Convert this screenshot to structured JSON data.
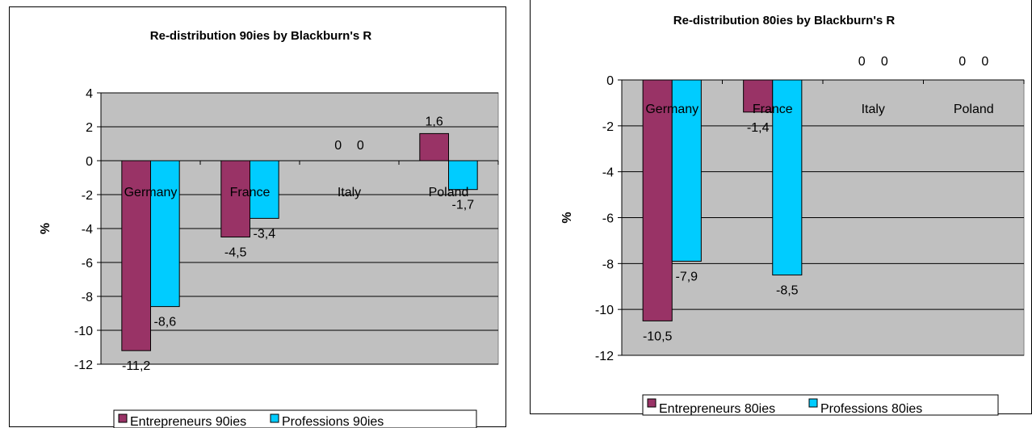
{
  "chart_data": [
    {
      "type": "bar",
      "title": "Re-distribution 90ies by Blackburn's R",
      "xlabel": "",
      "ylabel": "%",
      "categories": [
        "Germany",
        "France",
        "Italy",
        "Poland"
      ],
      "series": [
        {
          "name": "Entrepreneurs 90ies",
          "values": [
            -11.2,
            -4.5,
            0,
            1.6
          ],
          "labels": [
            "-11,2",
            "-4,5",
            "0",
            "1,6"
          ],
          "color": "#993366"
        },
        {
          "name": "Professions 90ies",
          "values": [
            -8.6,
            -3.4,
            0,
            -1.7
          ],
          "labels": [
            "-8,6",
            "-3,4",
            "0",
            "-1,7"
          ],
          "color": "#00ccff"
        }
      ],
      "ylim": [
        -12,
        4
      ],
      "yticks": [
        "-12",
        "-10",
        "-8",
        "-6",
        "-4",
        "-2",
        "0",
        "2",
        "4"
      ],
      "grid": true,
      "plot_background": "#c0c0c0",
      "legend_position": "bottom"
    },
    {
      "type": "bar",
      "title": "Re-distribution 80ies by Blackburn's R",
      "xlabel": "",
      "ylabel": "%",
      "categories": [
        "Germany",
        "France",
        "Italy",
        "Poland"
      ],
      "series": [
        {
          "name": "Entrepreneurs 80ies",
          "values": [
            -10.5,
            -1.4,
            0,
            0
          ],
          "labels": [
            "-10,5",
            "-1,4",
            "0",
            "0"
          ],
          "color": "#993366"
        },
        {
          "name": "Professions 80ies",
          "values": [
            -7.9,
            -8.5,
            0,
            0
          ],
          "labels": [
            "-7,9",
            "-8,5",
            "0",
            "0"
          ],
          "color": "#00ccff"
        }
      ],
      "ylim": [
        -12,
        0
      ],
      "yticks": [
        "-12",
        "-10",
        "-8",
        "-6",
        "-4",
        "-2",
        "0"
      ],
      "grid": true,
      "plot_background": "#c0c0c0",
      "legend_position": "bottom"
    }
  ]
}
